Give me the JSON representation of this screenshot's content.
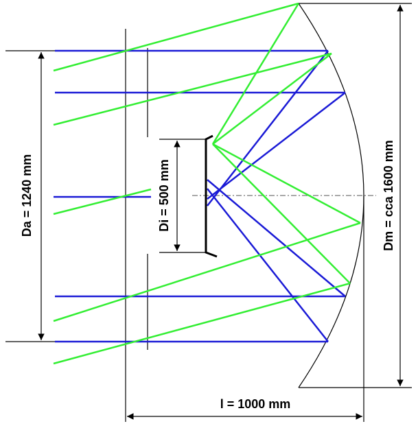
{
  "labels": {
    "da": "Da = 1240 mm",
    "di": "Di = 500 mm",
    "dm": "Dm = cca 1600 mm",
    "l": "l = 1000 mm"
  }
}
